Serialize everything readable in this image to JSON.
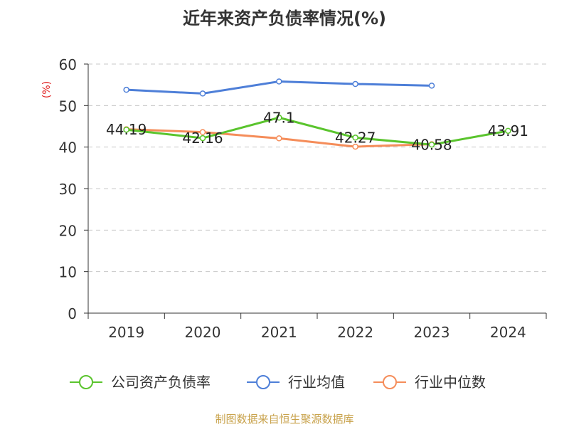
{
  "chart_data": {
    "type": "line",
    "title": "近年来资产负债率情况(%)",
    "ylabel": "(%)",
    "xlabel": "",
    "categories": [
      "2019",
      "2020",
      "2021",
      "2022",
      "2023",
      "2024"
    ],
    "ylim": [
      0,
      60
    ],
    "yticks": [
      0,
      10,
      20,
      30,
      40,
      50,
      60
    ],
    "grid": true,
    "legend": "bottom",
    "series": [
      {
        "name": "公司资产负债率",
        "color": "#5ac42d",
        "values": [
          44.19,
          42.16,
          47.1,
          42.27,
          40.58,
          43.91
        ],
        "labels": [
          "44.19",
          "42.16",
          "47.1",
          "42.27",
          "40.58",
          "43.91"
        ]
      },
      {
        "name": "行业均值",
        "color": "#4e7fd8",
        "values": [
          53.8,
          52.9,
          55.8,
          55.2,
          54.8,
          null
        ]
      },
      {
        "name": "行业中位数",
        "color": "#f58d5a",
        "values": [
          44.3,
          43.6,
          42.1,
          40.1,
          40.7,
          null
        ]
      }
    ]
  },
  "footer": "制图数据来自恒生聚源数据库"
}
